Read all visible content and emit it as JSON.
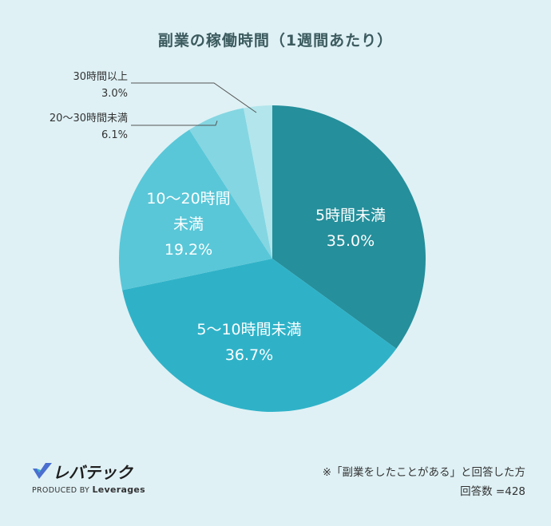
{
  "chart_data": {
    "type": "pie",
    "title": "副業の稼働時間（1週間あたり）",
    "slices": [
      {
        "label_lines": [
          "5時間未満"
        ],
        "value": 35.0,
        "value_text": "35.0%",
        "color": "#258f9b"
      },
      {
        "label_lines": [
          "5〜10時間未満"
        ],
        "value": 36.7,
        "value_text": "36.7%",
        "color": "#2fb2c8"
      },
      {
        "label_lines": [
          "10〜20時間",
          "未満"
        ],
        "value": 19.2,
        "value_text": "19.2%",
        "color": "#59c7d8"
      },
      {
        "label_lines": [
          "20〜30時間未満"
        ],
        "value": 6.1,
        "value_text": "6.1%",
        "color": "#84d6e2"
      },
      {
        "label_lines": [
          "30時間以上"
        ],
        "value": 3.0,
        "value_text": "3.0%",
        "color": "#b2e6ec"
      }
    ]
  },
  "logo": {
    "brand": "レバテック",
    "produced_by": "PRODUCED BY",
    "company": "Leverages"
  },
  "note": {
    "line1": "※「副業をしたことがある」と回答した方",
    "line2": "回答数 =428"
  },
  "colors": {
    "background": "#dff1f5",
    "title": "#3b5a5e"
  }
}
